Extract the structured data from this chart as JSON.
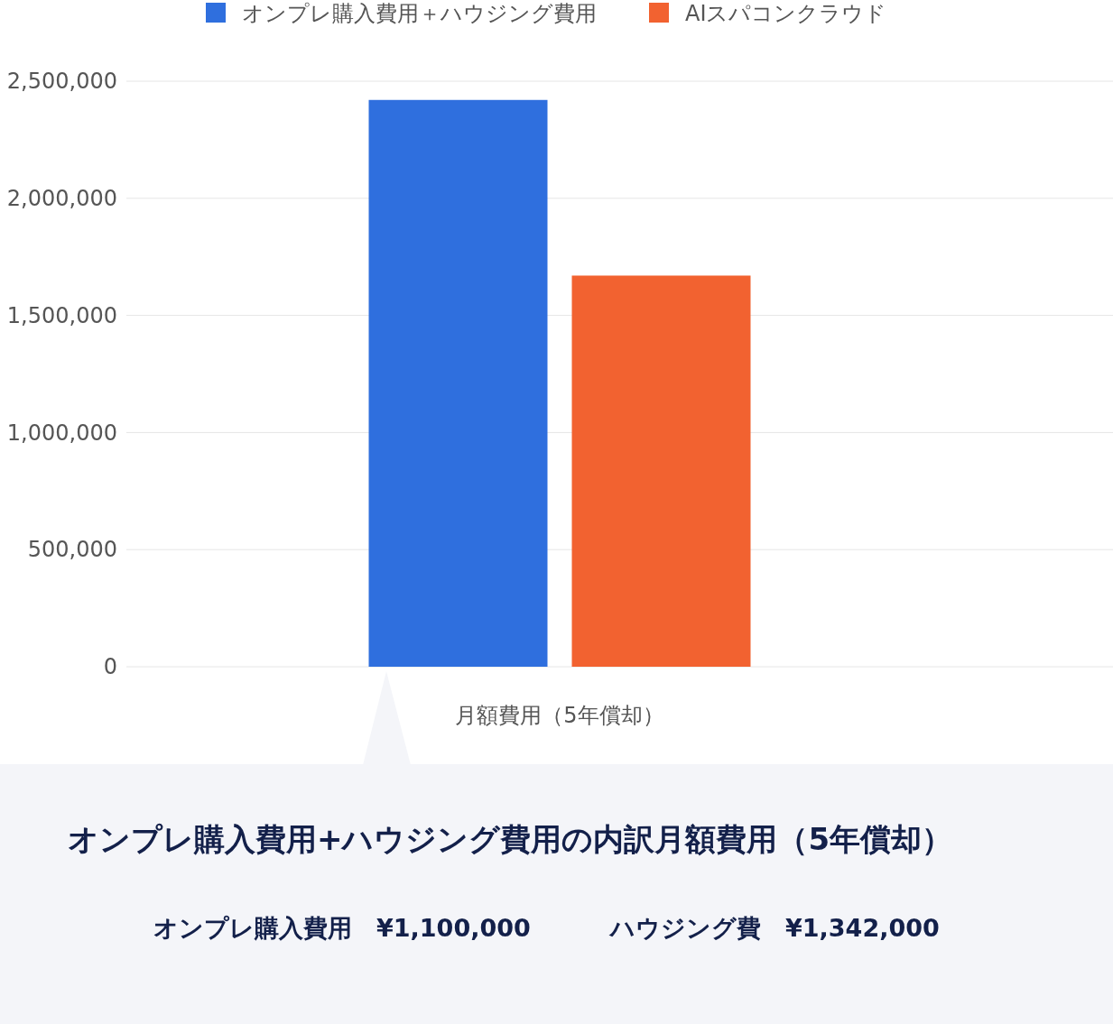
{
  "chart_data": {
    "type": "bar",
    "categories": [
      "月額費用（5年償却）"
    ],
    "series": [
      {
        "name": "オンプレ購入費用＋ハウジング費用",
        "color": "#2f6fde",
        "values": [
          2420000
        ]
      },
      {
        "name": "AIスパコンクラウド",
        "color": "#f26230",
        "values": [
          1670000
        ]
      }
    ],
    "ylim": [
      0,
      2500000
    ],
    "yticks": [
      {
        "value": 0,
        "label": "0"
      },
      {
        "value": 500000,
        "label": "500,000"
      },
      {
        "value": 1000000,
        "label": "1,000,000"
      },
      {
        "value": 1500000,
        "label": "1,500,000"
      },
      {
        "value": 2000000,
        "label": "2,000,000"
      },
      {
        "value": 2500000,
        "label": "2,500,000"
      }
    ],
    "grid": "y",
    "legend": "top",
    "annotations": [
      "オンプレ購入費用+ハウジング費用の内訳月額費用（5年償却）",
      "オンプレ購入費用　¥1,100,000",
      "ハウジング費　¥1,342,000"
    ]
  }
}
